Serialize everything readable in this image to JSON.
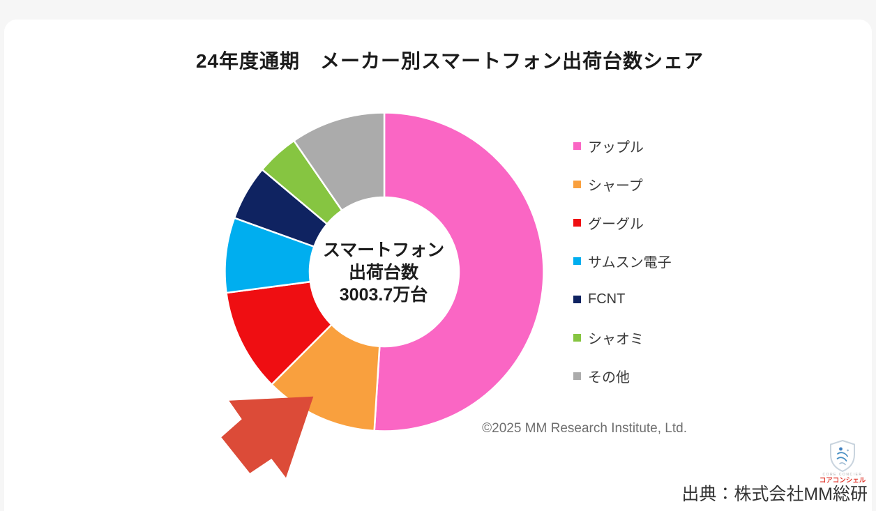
{
  "page": {
    "title": "24年度通期　メーカー別スマートフォン出荷台数シェア",
    "copyright": "©2025 MM Research Institute, Ltd.",
    "source": "出典：株式会社MM総研"
  },
  "logo": {
    "caption_en": "CORE CONCIER",
    "caption_ja": "コアコンシェル"
  },
  "chart_data": {
    "type": "pie",
    "subtype": "donut",
    "title": "24年度通期　メーカー別スマートフォン出荷台数シェア",
    "center_label": {
      "line1": "スマートフォン",
      "line2": "出荷台数",
      "line3": "3003.7万台"
    },
    "total_shipments": "3003.7万台",
    "categories": [
      "アップル",
      "シャープ",
      "グーグル",
      "サムスン電子",
      "FCNT",
      "シャオミ",
      "その他"
    ],
    "values": [
      51.0,
      11.5,
      10.4,
      7.6,
      5.6,
      4.3,
      9.6
    ],
    "unit": "%",
    "colors": [
      "#FA66C4",
      "#F9A03E",
      "#EF0E12",
      "#00AEEF",
      "#0F2361",
      "#86C541",
      "#ABABAB"
    ],
    "start_angle_deg": 0,
    "direction": "clockwise",
    "legend_position": "right",
    "annotation": {
      "shape": "arrow",
      "color": "#DC4B38",
      "points_to": "シャープ"
    }
  }
}
